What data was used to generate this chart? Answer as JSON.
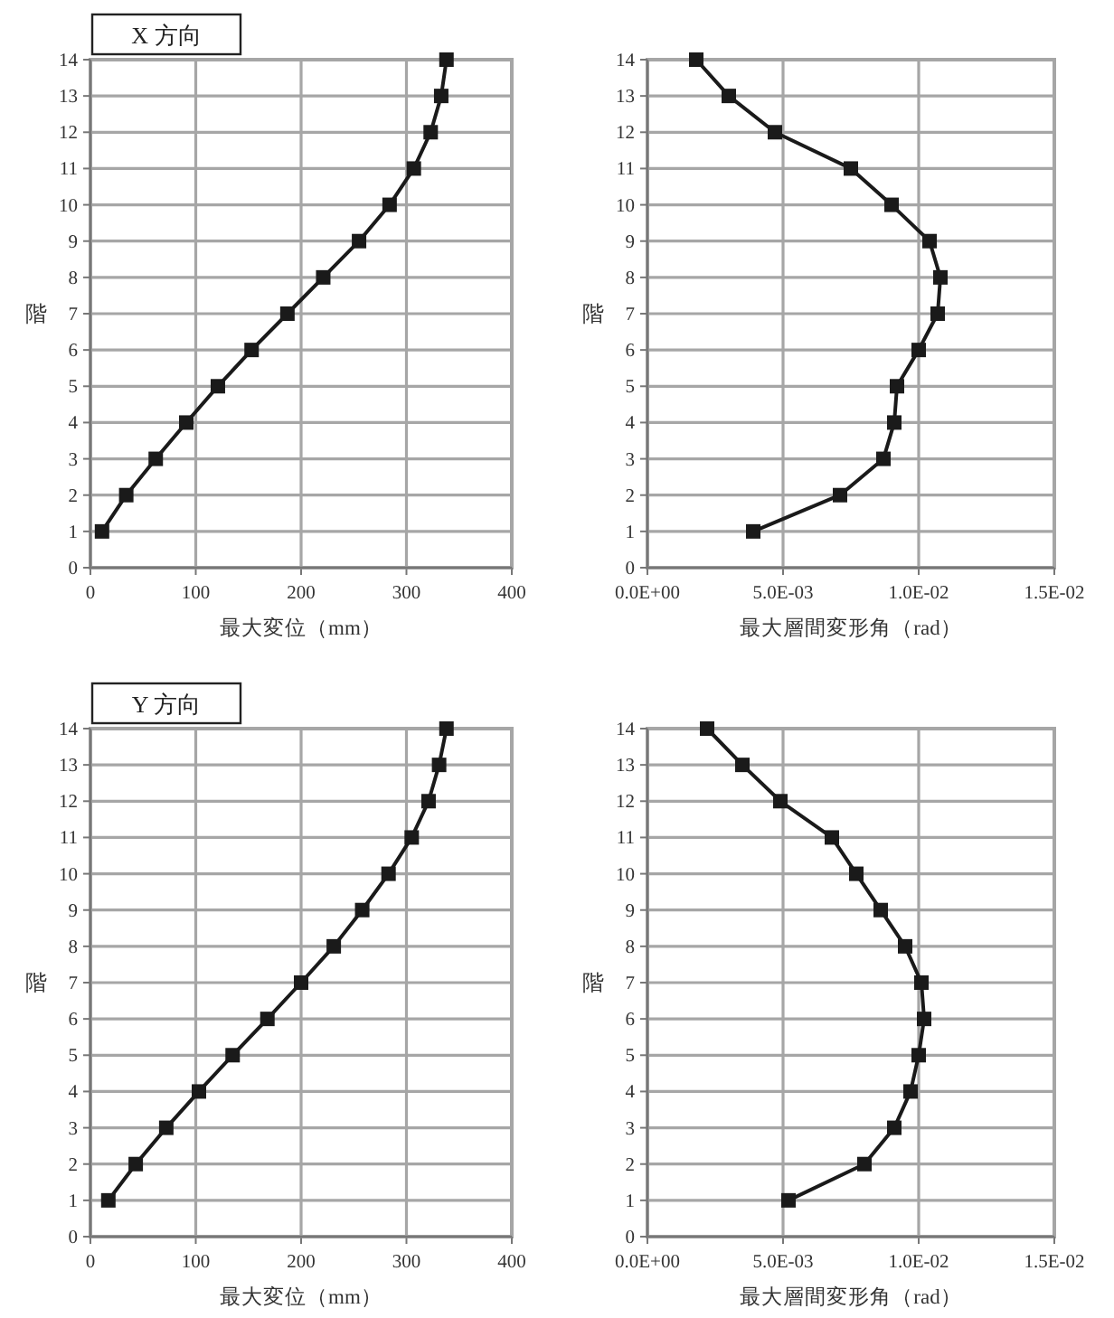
{
  "chart_data": [
    {
      "type": "line",
      "title": "X 方向",
      "xlabel": "最大変位（mm）",
      "ylabel": "階",
      "xlim": [
        0,
        400
      ],
      "xticks": [
        0,
        100,
        200,
        300,
        400
      ],
      "ylim": [
        0,
        14
      ],
      "yticks": [
        0,
        1,
        2,
        3,
        4,
        5,
        6,
        7,
        8,
        9,
        10,
        11,
        12,
        13,
        14
      ],
      "grid": true,
      "marker": "square",
      "line_style": "solid",
      "series": [
        {
          "color": "#1a1a1a",
          "x": [
            11,
            34,
            62,
            91,
            121,
            153,
            187,
            221,
            255,
            284,
            307,
            323,
            333,
            338
          ],
          "values": [
            1,
            2,
            3,
            4,
            5,
            6,
            7,
            8,
            9,
            10,
            11,
            12,
            13,
            14
          ]
        }
      ]
    },
    {
      "type": "line",
      "xlabel": "最大層間変形角（rad）",
      "ylabel": "階",
      "xlim": [
        0,
        0.015
      ],
      "xticks": [
        {
          "value": 0,
          "label": "0.0E+00"
        },
        {
          "value": 0.005,
          "label": "5.0E-03"
        },
        {
          "value": 0.01,
          "label": "1.0E-02"
        },
        {
          "value": 0.015,
          "label": "1.5E-02"
        }
      ],
      "ylim": [
        0,
        14
      ],
      "yticks": [
        0,
        1,
        2,
        3,
        4,
        5,
        6,
        7,
        8,
        9,
        10,
        11,
        12,
        13,
        14
      ],
      "grid": true,
      "marker": "square",
      "line_style": "solid",
      "series": [
        {
          "color": "#1a1a1a",
          "x": [
            0.0039,
            0.0071,
            0.0087,
            0.0091,
            0.0092,
            0.01,
            0.0107,
            0.0108,
            0.0104,
            0.009,
            0.0075,
            0.0047,
            0.003,
            0.0018
          ],
          "values": [
            1,
            2,
            3,
            4,
            5,
            6,
            7,
            8,
            9,
            10,
            11,
            12,
            13,
            14
          ]
        }
      ]
    },
    {
      "type": "line",
      "title": "Y 方向",
      "xlabel": "最大変位（mm）",
      "ylabel": "階",
      "xlim": [
        0,
        400
      ],
      "xticks": [
        0,
        100,
        200,
        300,
        400
      ],
      "ylim": [
        0,
        14
      ],
      "yticks": [
        0,
        1,
        2,
        3,
        4,
        5,
        6,
        7,
        8,
        9,
        10,
        11,
        12,
        13,
        14
      ],
      "grid": true,
      "marker": "square",
      "line_style": "solid",
      "series": [
        {
          "color": "#1a1a1a",
          "x": [
            17,
            43,
            72,
            103,
            135,
            168,
            200,
            231,
            258,
            283,
            305,
            321,
            331,
            338
          ],
          "values": [
            1,
            2,
            3,
            4,
            5,
            6,
            7,
            8,
            9,
            10,
            11,
            12,
            13,
            14
          ]
        }
      ]
    },
    {
      "type": "line",
      "xlabel": "最大層間変形角（rad）",
      "ylabel": "階",
      "xlim": [
        0,
        0.015
      ],
      "xticks": [
        {
          "value": 0,
          "label": "0.0E+00"
        },
        {
          "value": 0.005,
          "label": "5.0E-03"
        },
        {
          "value": 0.01,
          "label": "1.0E-02"
        },
        {
          "value": 0.015,
          "label": "1.5E-02"
        }
      ],
      "ylim": [
        0,
        14
      ],
      "yticks": [
        0,
        1,
        2,
        3,
        4,
        5,
        6,
        7,
        8,
        9,
        10,
        11,
        12,
        13,
        14
      ],
      "grid": true,
      "marker": "square",
      "line_style": "solid",
      "series": [
        {
          "color": "#1a1a1a",
          "x": [
            0.0052,
            0.008,
            0.0091,
            0.0097,
            0.01,
            0.0102,
            0.0101,
            0.0095,
            0.0086,
            0.0077,
            0.0068,
            0.0049,
            0.0035,
            0.0022
          ],
          "values": [
            1,
            2,
            3,
            4,
            5,
            6,
            7,
            8,
            9,
            10,
            11,
            12,
            13,
            14
          ]
        }
      ]
    }
  ]
}
